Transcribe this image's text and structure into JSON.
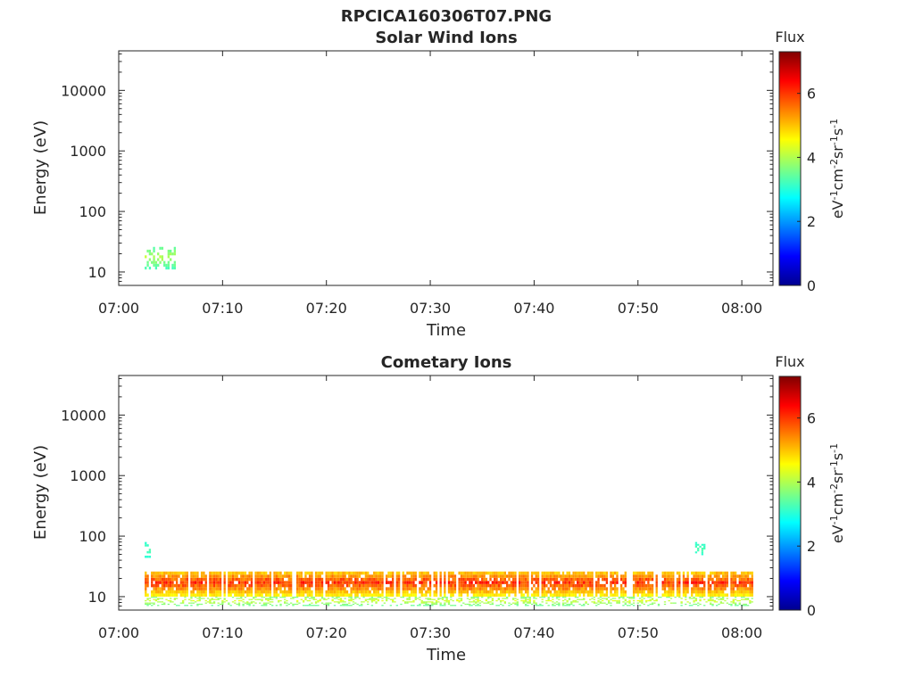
{
  "figure_title": "RPCICA160306T07.PNG",
  "colormap": [
    "#00008f",
    "#0000ff",
    "#0080ff",
    "#00ffff",
    "#80ff80",
    "#ffff00",
    "#ff8000",
    "#ff0000",
    "#800000"
  ],
  "chart_data": [
    {
      "type": "heatmap",
      "title": "Solar Wind Ions",
      "xlabel": "Time",
      "ylabel": "Energy (eV)",
      "x_ticks": [
        "07:00",
        "07:10",
        "07:20",
        "07:30",
        "07:40",
        "07:50",
        "08:00"
      ],
      "x_range_minutes": [
        0,
        63
      ],
      "y_scale": "log",
      "y_ticks": [
        10,
        100,
        1000,
        10000
      ],
      "y_tick_labels": [
        "10",
        "100",
        "1000",
        "10000"
      ],
      "y_range": [
        6,
        45000
      ],
      "grid": false,
      "colorbar": {
        "title": "Flux",
        "label": "eV-1cm-2sr-1s-1",
        "range": [
          0,
          7.3
        ],
        "ticks": [
          "0",
          "2",
          "4",
          "6"
        ]
      },
      "flux_regions": [
        {
          "t_start": 2.5,
          "t_end": 5.5,
          "e_low": 11,
          "e_high": 26,
          "flux_min": 2.8,
          "flux_max": 4.2,
          "density": 0.45
        }
      ]
    },
    {
      "type": "heatmap",
      "title": "Cometary Ions",
      "xlabel": "Time",
      "ylabel": "Energy (eV)",
      "x_ticks": [
        "07:00",
        "07:10",
        "07:20",
        "07:30",
        "07:40",
        "07:50",
        "08:00"
      ],
      "x_range_minutes": [
        0,
        63
      ],
      "y_scale": "log",
      "y_ticks": [
        10,
        100,
        1000,
        10000
      ],
      "y_tick_labels": [
        "10",
        "100",
        "1000",
        "10000"
      ],
      "y_range": [
        6,
        45000
      ],
      "grid": false,
      "colorbar": {
        "title": "Flux",
        "label": "eV-1cm-2sr-1s-1",
        "range": [
          0,
          7.3
        ],
        "ticks": [
          "0",
          "2",
          "4",
          "6"
        ]
      },
      "flux_regions": [
        {
          "t_start": 2.5,
          "t_end": 61,
          "e_low": 10,
          "e_high": 26,
          "flux_min": 3.8,
          "flux_max": 6.4,
          "density": 0.9
        },
        {
          "t_start": 2.5,
          "t_end": 61,
          "e_low": 7,
          "e_high": 10,
          "flux_min": 3.0,
          "flux_max": 4.5,
          "density": 0.35
        },
        {
          "t_start": 2.5,
          "t_end": 3.0,
          "e_low": 40,
          "e_high": 80,
          "flux_min": 2.8,
          "flux_max": 3.4,
          "density": 0.5
        },
        {
          "t_start": 55.5,
          "t_end": 56.5,
          "e_low": 45,
          "e_high": 80,
          "flux_min": 2.8,
          "flux_max": 3.4,
          "density": 0.5
        }
      ]
    }
  ]
}
